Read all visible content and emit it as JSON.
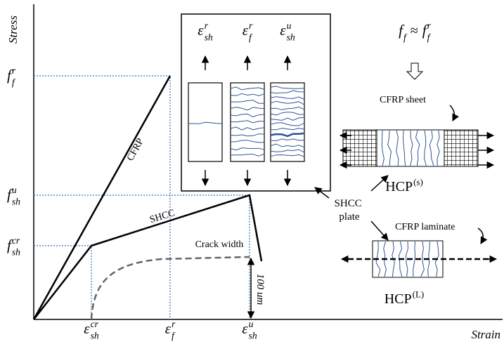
{
  "axes": {
    "y_label": "Stress",
    "x_label": "Strain"
  },
  "y_labels": [
    {
      "base": "f",
      "sub": "f",
      "sup": "r"
    },
    {
      "base": "f",
      "sub": "sh",
      "sup": "u"
    },
    {
      "base": "f",
      "sub": "sh",
      "sup": "cr"
    }
  ],
  "x_labels": [
    {
      "base": "ε",
      "sub": "sh",
      "sup": "cr"
    },
    {
      "base": "ε",
      "sub": "f",
      "sup": "r"
    },
    {
      "base": "ε",
      "sub": "sh",
      "sup": "u"
    }
  ],
  "curve_labels": {
    "cfrp": "CFRP",
    "shcc": "SHCC",
    "crack_width": "Crack width",
    "crack_scale": "100 um"
  },
  "inset": {
    "labels": [
      {
        "base": "ε",
        "sub": "sh",
        "sup": "r"
      },
      {
        "base": "ε",
        "sub": "f",
        "sup": "r"
      },
      {
        "base": "ε",
        "sub": "sh",
        "sup": "u"
      }
    ]
  },
  "relation": {
    "lhs": {
      "base": "f",
      "sub": "f"
    },
    "op": "≈",
    "rhs": {
      "base": "f",
      "sub": "f",
      "sup": "r"
    }
  },
  "specimens": {
    "sheet_label": "CFRP sheet",
    "hcp_s": {
      "base": "HCP",
      "sup": "(s)"
    },
    "plate_label": [
      "SHCC",
      "plate"
    ],
    "laminate_label": "CFRP laminate",
    "hcp_l": {
      "base": "HCP",
      "sup": "(L)"
    }
  }
}
